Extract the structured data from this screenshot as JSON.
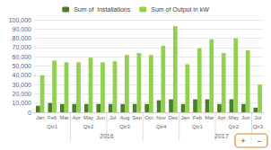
{
  "chart_data": {
    "type": "bar",
    "categories": [
      "Jan",
      "Feb",
      "Mar",
      "Apr",
      "May",
      "Jun",
      "Jul",
      "Aug",
      "Sep",
      "Oct",
      "Nov",
      "Dec",
      "Jan",
      "Feb",
      "Mar",
      "Apr",
      "May",
      "Jun",
      "Jul"
    ],
    "quarters": [
      "Qtr1",
      "Qtr1",
      "Qtr1",
      "Qtr2",
      "Qtr2",
      "Qtr2",
      "Qtr3",
      "Qtr3",
      "Qtr3",
      "Qtr4",
      "Qtr4",
      "Qtr4",
      "Qtr1",
      "Qtr1",
      "Qtr1",
      "Qtr2",
      "Qtr2",
      "Qtr2",
      "Qtr3"
    ],
    "years": [
      "2016",
      "2016",
      "2016",
      "2016",
      "2016",
      "2016",
      "2016",
      "2016",
      "2016",
      "2016",
      "2016",
      "2016",
      "2017",
      "2017",
      "2017",
      "2017",
      "2017",
      "2017",
      "2017"
    ],
    "series": [
      {
        "name": "Sum of  Installations",
        "color": "#4d7c2e",
        "values": [
          7000,
          10000,
          9000,
          9000,
          9000,
          9000,
          9000,
          9000,
          9000,
          9000,
          13000,
          14000,
          9000,
          14000,
          14000,
          9000,
          14000,
          9000,
          5000
        ]
      },
      {
        "name": "Sum of Output in kW",
        "color": "#92d050",
        "values": [
          40000,
          56000,
          54000,
          54000,
          59000,
          54000,
          55000,
          62000,
          64000,
          62000,
          72000,
          93000,
          52000,
          69000,
          79000,
          64000,
          80000,
          67000,
          30000
        ]
      }
    ],
    "ylim": [
      0,
      100000
    ],
    "yticks": [
      0,
      {
        "value": 10000,
        "label": "10,000"
      },
      {
        "value": 20000,
        "label": "20,000"
      },
      {
        "value": 30000,
        "label": "30,000"
      },
      {
        "value": 40000,
        "label": "40,000"
      },
      {
        "value": 50000,
        "label": "50,000"
      },
      {
        "value": 60000,
        "label": "60,000"
      },
      {
        "value": 70000,
        "label": "70,000"
      },
      {
        "value": 80000,
        "label": "80,000"
      },
      {
        "value": 90000,
        "label": "90,000"
      },
      {
        "value": 100000,
        "label": "100,000"
      }
    ],
    "grid": true,
    "legend": "top",
    "annotations": [
      "+",
      "−"
    ]
  }
}
